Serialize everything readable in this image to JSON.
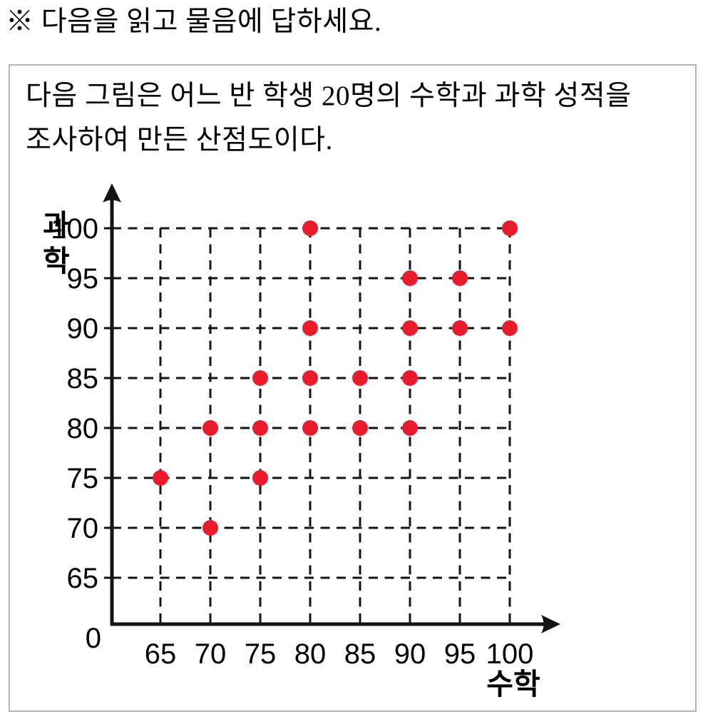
{
  "header": {
    "instruction": "※ 다음을 읽고 물음에 답하세요."
  },
  "problem_box": {
    "description_line1": "다음 그림은 어느 반 학생 20명의 수학과 과학 성적을",
    "description_line2": "조사하여 만든 산점도이다."
  },
  "chart_data": {
    "type": "scatter",
    "title": "",
    "xlabel": "수학",
    "ylabel": "과학",
    "origin_label": "0",
    "x_ticks": [
      65,
      70,
      75,
      80,
      85,
      90,
      95,
      100
    ],
    "y_ticks": [
      65,
      70,
      75,
      80,
      85,
      90,
      95,
      100
    ],
    "xlim": [
      0,
      100
    ],
    "ylim": [
      0,
      100
    ],
    "grid": "dashed",
    "legend": "none",
    "point_count": 20,
    "point_color": "#e81c2c",
    "axis_color": "#141414",
    "points": [
      [
        65,
        75
      ],
      [
        70,
        70
      ],
      [
        70,
        80
      ],
      [
        75,
        75
      ],
      [
        75,
        80
      ],
      [
        75,
        85
      ],
      [
        80,
        80
      ],
      [
        80,
        85
      ],
      [
        80,
        90
      ],
      [
        80,
        100
      ],
      [
        85,
        80
      ],
      [
        85,
        85
      ],
      [
        90,
        80
      ],
      [
        90,
        85
      ],
      [
        90,
        90
      ],
      [
        90,
        95
      ],
      [
        95,
        90
      ],
      [
        95,
        95
      ],
      [
        100,
        90
      ],
      [
        100,
        100
      ]
    ]
  }
}
